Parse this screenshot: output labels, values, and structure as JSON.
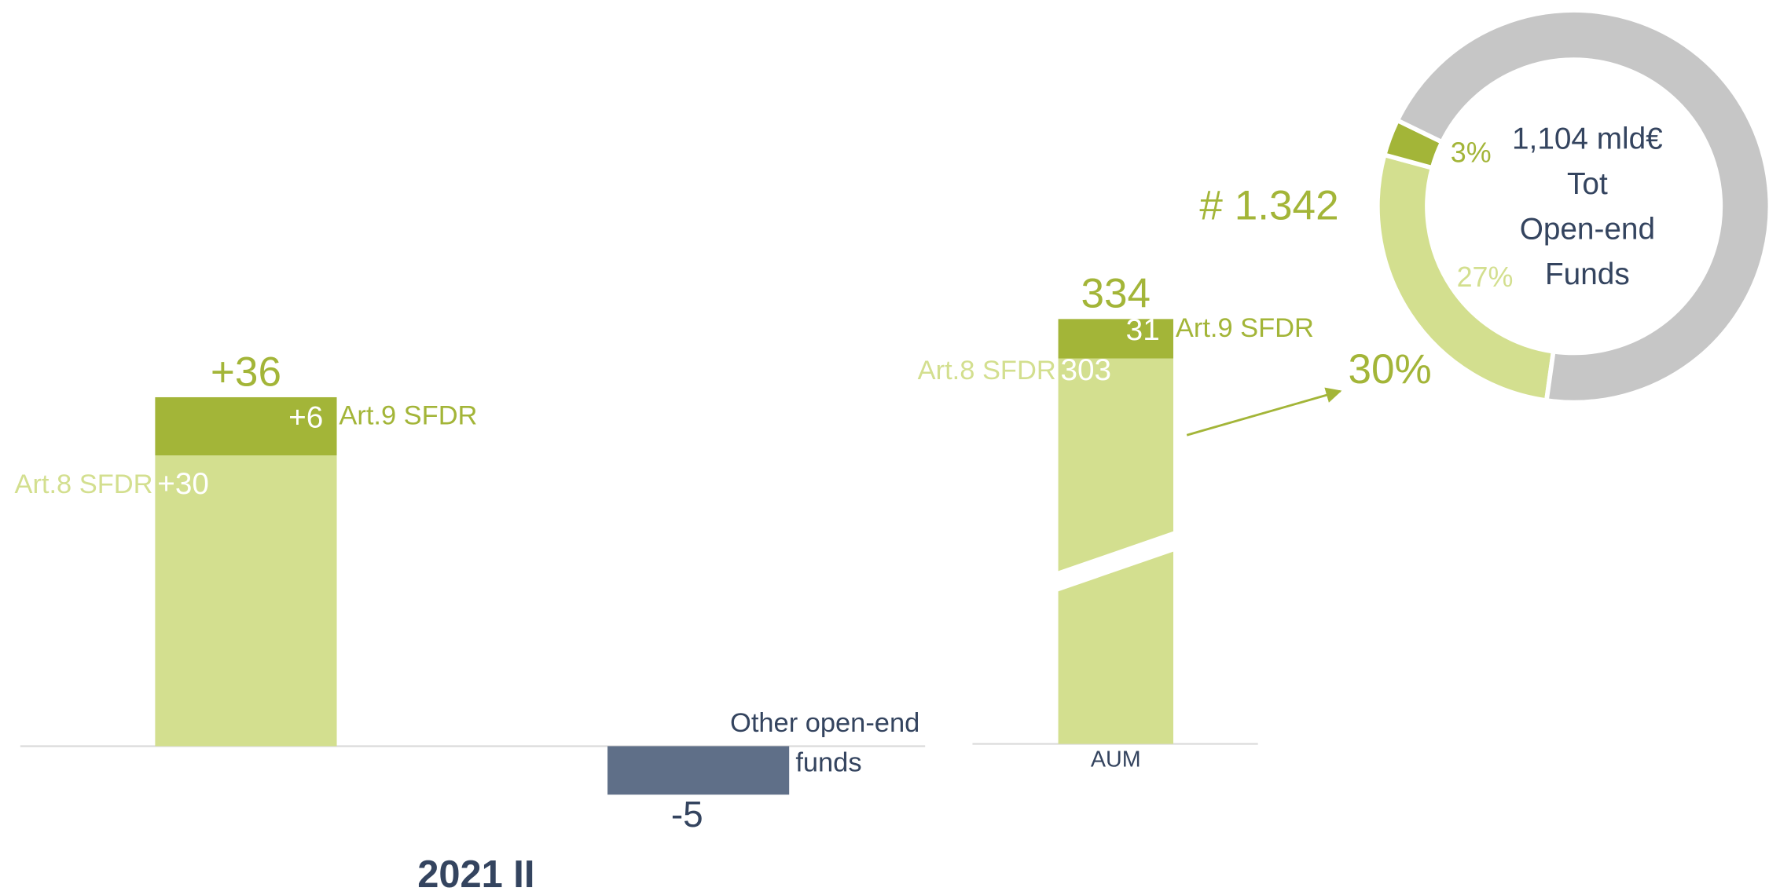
{
  "chart_data": [
    {
      "type": "bar",
      "stacked": true,
      "title": "2021 II",
      "categories": [
        null,
        null
      ],
      "series": [
        {
          "name": "Art.8 SFDR",
          "color": "#d3df8f",
          "values": [
            30,
            null
          ],
          "value_labels": [
            "+30",
            null
          ]
        },
        {
          "name": "Art.9 SFDR",
          "color": "#a3b538",
          "values": [
            6,
            null
          ],
          "value_labels": [
            "+6",
            null
          ]
        },
        {
          "name": "Other open-end funds",
          "color": "#5f6f88",
          "values": [
            null,
            -5
          ]
        }
      ],
      "totals": [
        36,
        null
      ],
      "total_labels": [
        "+36",
        null
      ]
    },
    {
      "type": "bar",
      "stacked": true,
      "axis_break": true,
      "categories": [
        "AUM"
      ],
      "series": [
        {
          "name": "Art.8 SFDR",
          "color": "#d3df8f",
          "values": [
            303
          ]
        },
        {
          "name": "Art.9 SFDR",
          "color": "#a3b538",
          "values": [
            31
          ]
        }
      ],
      "totals": [
        334
      ],
      "annotations": [
        "# 1.342",
        "30%"
      ]
    },
    {
      "type": "pie",
      "donut": true,
      "values": [
        27,
        3,
        70
      ],
      "colors": [
        "#d3df8f",
        "#a3b538",
        "#c6c6c6"
      ],
      "value_labels": [
        "27%",
        "3%",
        null
      ],
      "center_text": [
        "1,104 mld€",
        "Tot",
        "Open-end",
        "Funds"
      ]
    }
  ]
}
